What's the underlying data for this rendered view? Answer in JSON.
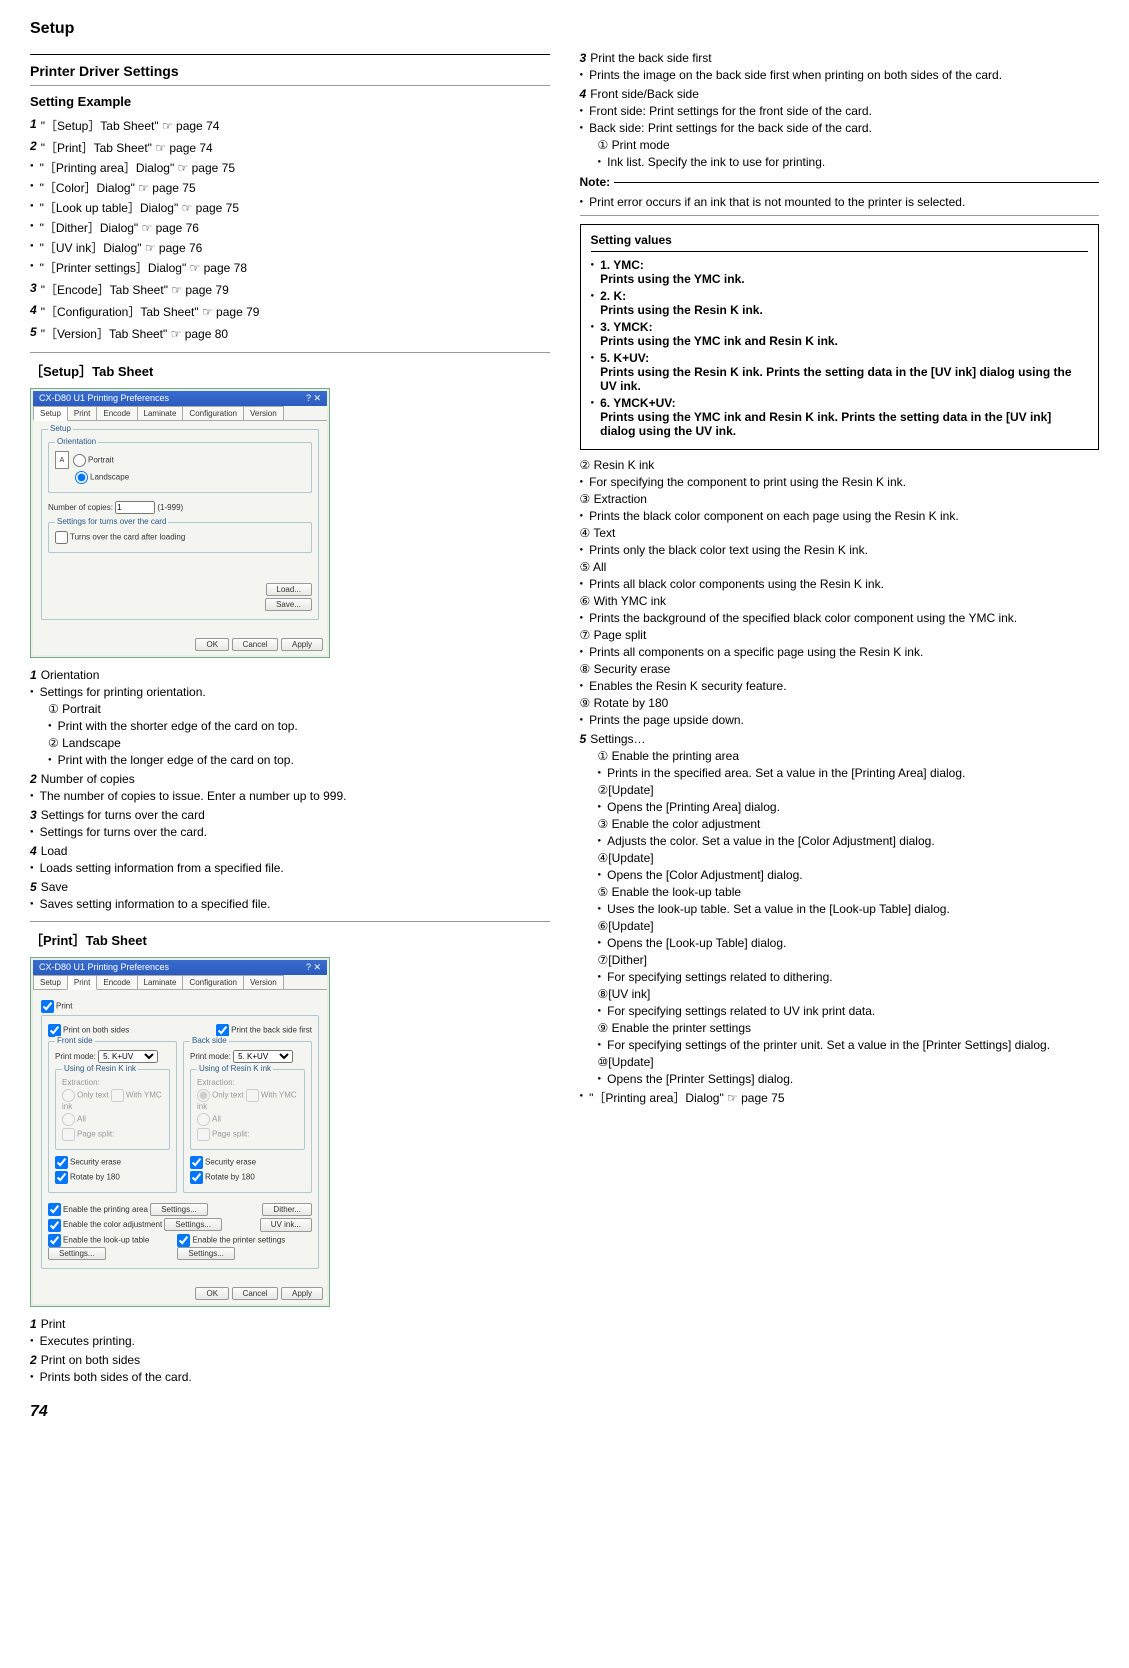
{
  "page_title": "Setup",
  "page_number": "74",
  "left": {
    "h1": "Printer Driver Settings",
    "h2": "Setting Example",
    "toc": [
      {
        "num": "1",
        "text": "\"［Setup］Tab Sheet\" ☞ page 74"
      },
      {
        "num": "2",
        "text": "\"［Print］Tab Sheet\" ☞ page 74"
      }
    ],
    "toc_sub": [
      "\"［Printing area］Dialog\" ☞ page 75",
      "\"［Color］Dialog\" ☞ page 75",
      "\"［Look up table］Dialog\" ☞ page 75",
      "\"［Dither］Dialog\" ☞ page 76",
      "\"［UV ink］Dialog\" ☞ page 76",
      "\"［Printer settings］Dialog\" ☞ page 78"
    ],
    "toc2": [
      {
        "num": "3",
        "text": "\"［Encode］Tab Sheet\" ☞ page 79"
      },
      {
        "num": "4",
        "text": "\"［Configuration］Tab Sheet\" ☞ page 79"
      },
      {
        "num": "5",
        "text": "\"［Version］Tab Sheet\" ☞ page 80"
      }
    ],
    "h3a": "［Setup］Tab Sheet",
    "ss1": {
      "title": "CX-D80 U1 Printing Preferences",
      "tabs": [
        "Setup",
        "Print",
        "Encode",
        "Laminate",
        "Configuration",
        "Version"
      ],
      "group1": "Setup",
      "group2": "Orientation",
      "portrait": "Portrait",
      "landscape": "Landscape",
      "copies_label": "Number of copies:",
      "copies_val": "1",
      "copies_range": "(1-999)",
      "group3": "Settings for turns over the card",
      "turns": "Turns over the card after loading",
      "load": "Load...",
      "save": "Save...",
      "ok": "OK",
      "cancel": "Cancel",
      "apply": "Apply"
    },
    "setup_items": [
      {
        "num": "1",
        "head": "Orientation",
        "bul": "Settings for printing orientation.",
        "sub": [
          {
            "c": "①",
            "h": "Portrait",
            "b": "Print with the shorter edge of the card on top."
          },
          {
            "c": "②",
            "h": "Landscape",
            "b": "Print with the longer edge of the card on top."
          }
        ]
      },
      {
        "num": "2",
        "head": "Number of copies",
        "bul": "The number of copies to issue. Enter a number up to 999."
      },
      {
        "num": "3",
        "head": "Settings for turns over the card",
        "bul": "Settings for turns over the card."
      },
      {
        "num": "4",
        "head": "Load",
        "bul": "Loads setting information from a specified file."
      },
      {
        "num": "5",
        "head": "Save",
        "bul": "Saves setting information to a specified file."
      }
    ],
    "h3b": "［Print］Tab Sheet",
    "ss2": {
      "title": "CX-D80 U1 Printing Preferences",
      "print": "Print",
      "both": "Print on both sides",
      "backfirst": "Print the back side first",
      "front": "Front side",
      "back": "Back side",
      "pm": "Print mode:",
      "pmval": "5. K+UV",
      "resink": "Using of Resin K ink",
      "extr": "Extraction:",
      "only": "Only text",
      "withymc": "With YMC ink",
      "all": "All",
      "pagesplit": "Page split:",
      "sec": "Security erase",
      "rot": "Rotate by 180",
      "ena_area": "Enable the printing area",
      "settings": "Settings...",
      "dither": "Dither...",
      "ena_color": "Enable the color adjustment",
      "uv": "UV ink...",
      "ena_look": "Enable the look-up table",
      "ena_ps": "Enable the printer settings"
    },
    "print_items": [
      {
        "num": "1",
        "head": "Print",
        "bul": "Executes printing."
      },
      {
        "num": "2",
        "head": "Print on both sides",
        "bul": "Prints both sides of the card."
      }
    ]
  },
  "right": {
    "top": [
      {
        "num": "3",
        "head": "Print the back side first",
        "bul": "Prints the image on the back side first when printing on both sides of the card."
      },
      {
        "num": "4",
        "head": "Front side/Back side",
        "bul": "Front side: Print settings for the front side of the card.",
        "bul2": "Back side: Print settings for the back side of the card."
      }
    ],
    "sub1": {
      "c": "①",
      "h": "Print mode",
      "b": "Ink list. Specify the ink to use for printing."
    },
    "note_label": "Note:",
    "note": "Print error occurs if an ink that is not mounted to the printer is selected.",
    "box_h": "Setting values",
    "box_items": [
      {
        "h": "1. YMC:",
        "b": "Prints using the YMC ink."
      },
      {
        "h": "2. K:",
        "b": "Prints using the Resin K ink."
      },
      {
        "h": "3. YMCK:",
        "b": "Prints using the YMC ink and Resin K ink."
      },
      {
        "h": "5. K+UV:",
        "b": "Prints using the Resin K ink. Prints the setting data in the [UV ink] dialog using the UV ink."
      },
      {
        "h": "6. YMCK+UV:",
        "b": "Prints using the YMC ink and Resin K ink. Prints the setting data in the [UV ink] dialog using the UV ink."
      }
    ],
    "subs": [
      {
        "c": "②",
        "h": "Resin K ink",
        "b": "For specifying the component to print using the Resin K ink."
      },
      {
        "c": "③",
        "h": "Extraction",
        "b": "Prints the black color component on each page using the Resin K ink."
      },
      {
        "c": "④",
        "h": "Text",
        "b": "Prints only the black color text using the Resin K ink."
      },
      {
        "c": "⑤",
        "h": "All",
        "b": "Prints all black color components using the Resin K ink."
      },
      {
        "c": "⑥",
        "h": "With YMC ink",
        "b": "Prints the background of the specified black color component using the YMC ink."
      },
      {
        "c": "⑦",
        "h": "Page split",
        "b": "Prints all components on a specific page using the Resin K ink."
      },
      {
        "c": "⑧",
        "h": "Security erase",
        "b": "Enables the Resin K security feature."
      },
      {
        "c": "⑨",
        "h": " Rotate by 180",
        "b": "Prints the page upside down."
      }
    ],
    "s5": {
      "num": "5",
      "head": "Settings…"
    },
    "s5subs": [
      {
        "c": "①",
        "h": " Enable the printing area",
        "b": "Prints in the specified area. Set a value in the [Printing Area] dialog."
      },
      {
        "c": "②",
        "h": "[Update]",
        "b": "Opens the [Printing Area] dialog."
      },
      {
        "c": "③",
        "h": " Enable the color adjustment",
        "b": "Adjusts the color. Set a value in the [Color Adjustment] dialog."
      },
      {
        "c": "④",
        "h": "[Update]",
        "b": "Opens the [Color Adjustment] dialog."
      },
      {
        "c": "⑤",
        "h": " Enable the look-up table",
        "b": "Uses the look-up table. Set a value in the [Look-up Table] dialog."
      },
      {
        "c": "⑥",
        "h": "[Update]",
        "b": "Opens the [Look-up Table] dialog."
      },
      {
        "c": "⑦",
        "h": "[Dither]",
        "b": "For specifying settings related to dithering."
      },
      {
        "c": "⑧",
        "h": "[UV ink]",
        "b": "For specifying settings related to UV ink print data."
      },
      {
        "c": "⑨",
        "h": " Enable the printer settings",
        "b": "For specifying settings of the printer unit. Set a value in the [Printer Settings] dialog."
      },
      {
        "c": "⑩",
        "h": "[Update]",
        "b": "Opens the [Printer Settings] dialog."
      }
    ],
    "last": "\"［Printing area］Dialog\" ☞ page 75"
  }
}
